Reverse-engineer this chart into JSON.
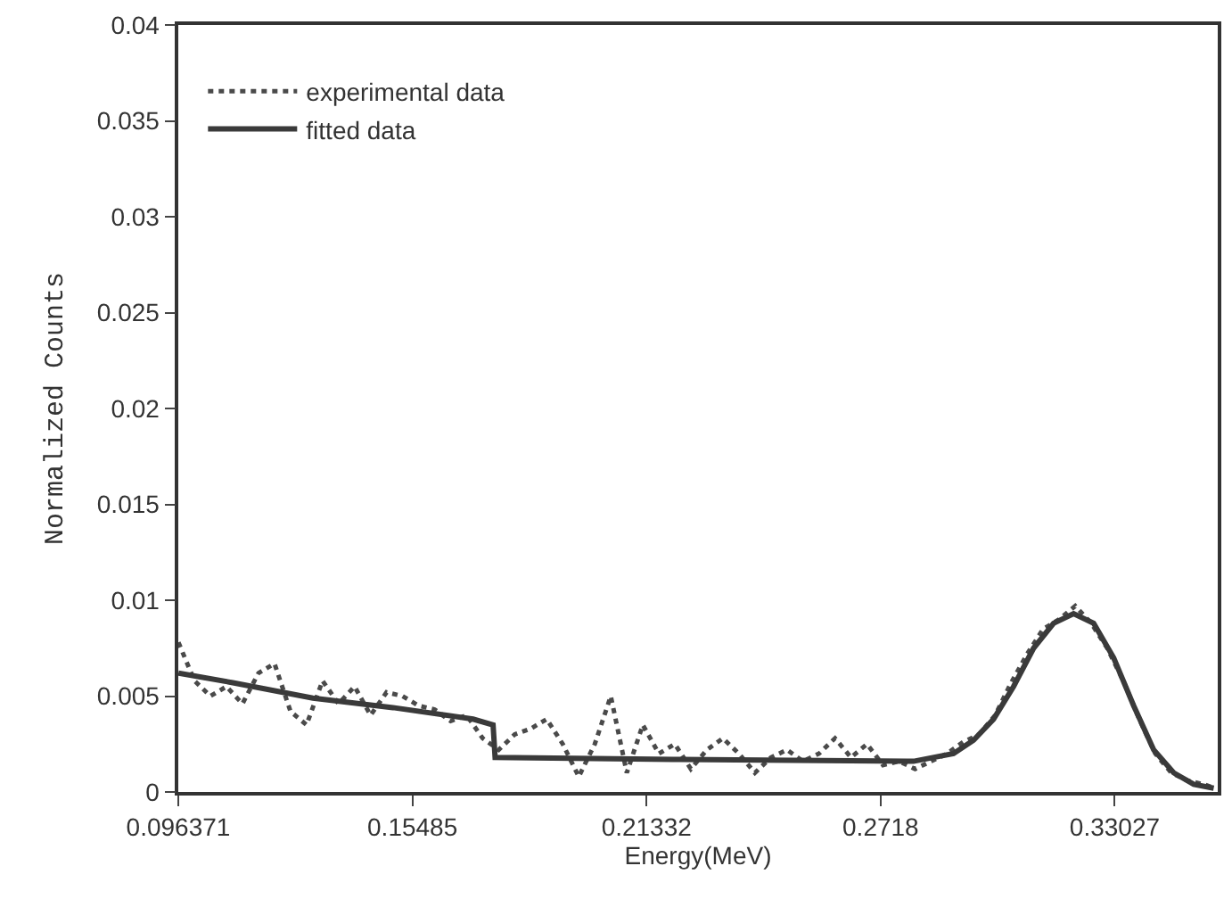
{
  "chart_data": {
    "type": "line",
    "xlabel": "Energy(MeV)",
    "ylabel": "Normalized Counts",
    "xlim": [
      0.096371,
      0.356
    ],
    "xticks": [
      0.096371,
      0.15485,
      0.21332,
      0.2718,
      0.33027
    ],
    "ylim": [
      0,
      0.04
    ],
    "yticks": [
      0,
      0.005,
      0.01,
      0.015,
      0.02,
      0.025,
      0.03,
      0.035,
      0.04
    ],
    "legend": "top left",
    "series": [
      {
        "name": "experimental data",
        "color": "#4a4a4a",
        "line_style": "dotted",
        "x": [
          0.0964,
          0.1004,
          0.1044,
          0.1084,
          0.1124,
          0.1164,
          0.1204,
          0.1244,
          0.1284,
          0.1324,
          0.1364,
          0.1404,
          0.1444,
          0.1484,
          0.1524,
          0.1564,
          0.1604,
          0.1644,
          0.1684,
          0.1724,
          0.1764,
          0.1804,
          0.1844,
          0.1884,
          0.1924,
          0.1964,
          0.2004,
          0.2044,
          0.2084,
          0.2124,
          0.2164,
          0.2204,
          0.2244,
          0.2284,
          0.2324,
          0.2364,
          0.2404,
          0.2444,
          0.2484,
          0.2524,
          0.2564,
          0.2604,
          0.2644,
          0.2684,
          0.2724,
          0.2764,
          0.2804,
          0.2844,
          0.2884,
          0.2924,
          0.2964,
          0.3004,
          0.3044,
          0.3084,
          0.3124,
          0.3164,
          0.3204,
          0.3244,
          0.3284,
          0.3324,
          0.3364,
          0.3404,
          0.3444,
          0.3484,
          0.3524,
          0.3554
        ],
        "values": [
          0.0078,
          0.0058,
          0.005,
          0.0055,
          0.0046,
          0.0062,
          0.0067,
          0.0042,
          0.0035,
          0.0058,
          0.0046,
          0.0055,
          0.004,
          0.0052,
          0.005,
          0.0045,
          0.0043,
          0.0037,
          0.004,
          0.0028,
          0.0022,
          0.003,
          0.0033,
          0.0038,
          0.0025,
          0.0008,
          0.0025,
          0.005,
          0.001,
          0.0035,
          0.002,
          0.0025,
          0.0012,
          0.0022,
          0.0028,
          0.002,
          0.001,
          0.0018,
          0.0022,
          0.0016,
          0.002,
          0.0028,
          0.0018,
          0.0025,
          0.0014,
          0.0016,
          0.0012,
          0.0016,
          0.002,
          0.0026,
          0.003,
          0.004,
          0.0057,
          0.0072,
          0.0085,
          0.009,
          0.0097,
          0.0088,
          0.0075,
          0.0058,
          0.0038,
          0.002,
          0.001,
          0.0006,
          0.0004,
          0.0002
        ]
      },
      {
        "name": "fitted data",
        "color": "#3a3a3a",
        "line_style": "solid",
        "x": [
          0.0964,
          0.11,
          0.13,
          0.15,
          0.17,
          0.175,
          0.1755,
          0.22,
          0.28,
          0.29,
          0.295,
          0.3,
          0.305,
          0.31,
          0.315,
          0.32,
          0.325,
          0.33,
          0.335,
          0.34,
          0.345,
          0.35,
          0.355
        ],
        "values": [
          0.0062,
          0.0057,
          0.0049,
          0.0044,
          0.0038,
          0.0035,
          0.0018,
          0.0017,
          0.0016,
          0.002,
          0.0027,
          0.0038,
          0.0055,
          0.0075,
          0.0088,
          0.0093,
          0.0088,
          0.007,
          0.0045,
          0.0022,
          0.001,
          0.0004,
          0.0002
        ]
      }
    ]
  }
}
